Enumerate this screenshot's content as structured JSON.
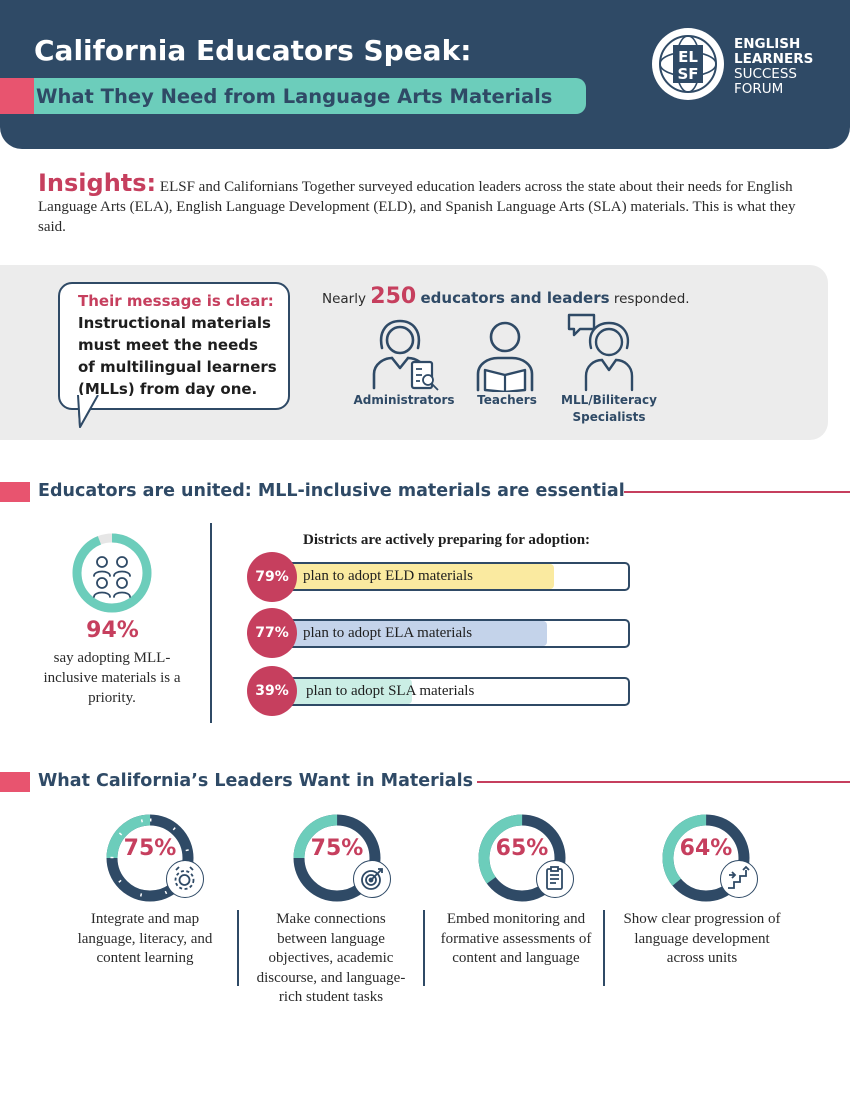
{
  "header": {
    "title": "California Educators Speak:",
    "subtitle": "What They Need from Language Arts Materials",
    "logo": {
      "mark_line1": "EL",
      "mark_line2": "SF",
      "line1": "ENGLISH",
      "line2": "LEARNERS",
      "line3": "SUCCESS",
      "line4": "FORUM"
    }
  },
  "insights": {
    "label": "Insights:",
    "text": "ELSF and Californians Together surveyed education leaders across the state about their needs for English Language Arts (ELA), English Language Development (ELD), and Spanish Language Arts (SLA) materials. This is what they said."
  },
  "message": {
    "heading": "Their message is clear:",
    "body": "Instructional materials must meet the needs of multilingual learners (MLLs) from day one."
  },
  "respondents": {
    "prefix": "Nearly",
    "count": "250",
    "bold_text": "educators and leaders",
    "suffix": "responded.",
    "roles": [
      {
        "label": "Administrators",
        "icon": "administrator-icon"
      },
      {
        "label": "Teachers",
        "icon": "teacher-icon"
      },
      {
        "label_line1": "MLL/Biliteracy",
        "label_line2": "Specialists",
        "icon": "specialist-icon"
      }
    ]
  },
  "section1": {
    "title": "Educators are united: MLL-inclusive materials are essential",
    "priority": {
      "pct_label": "94%",
      "value": 94,
      "text": "say adopting MLL-inclusive materials is a priority."
    },
    "districts_title": "Districts are actively preparing for adoption:",
    "bars": [
      {
        "pct_label": "79%",
        "value": 79,
        "text": "plan to adopt ELD materials",
        "color": "#faeaa0"
      },
      {
        "pct_label": "77%",
        "value": 77,
        "text": "plan to adopt ELA materials",
        "color": "#c4d3ea"
      },
      {
        "pct_label": "39%",
        "value": 39,
        "text": "plan to adopt SLA materials",
        "color": "#cbeee5"
      }
    ]
  },
  "section2": {
    "title": "What California’s Leaders Want in Materials",
    "items": [
      {
        "pct_label": "75%",
        "value": 75,
        "icon": "gear-icon",
        "text": "Integrate and map language, literacy, and content learning"
      },
      {
        "pct_label": "75%",
        "value": 75,
        "icon": "target-icon",
        "text": "Make connections between language objectives, academic discourse, and language-rich student tasks"
      },
      {
        "pct_label": "65%",
        "value": 65,
        "icon": "clipboard-icon",
        "text": "Embed monitoring and formative assessments of content and language"
      },
      {
        "pct_label": "64%",
        "value": 64,
        "icon": "progression-icon",
        "text": "Show clear progression of language development across units"
      }
    ]
  },
  "colors": {
    "navy": "#2f4a66",
    "pink": "#c63f5e",
    "coral": "#e8546f",
    "teal": "#6ccdbb"
  }
}
